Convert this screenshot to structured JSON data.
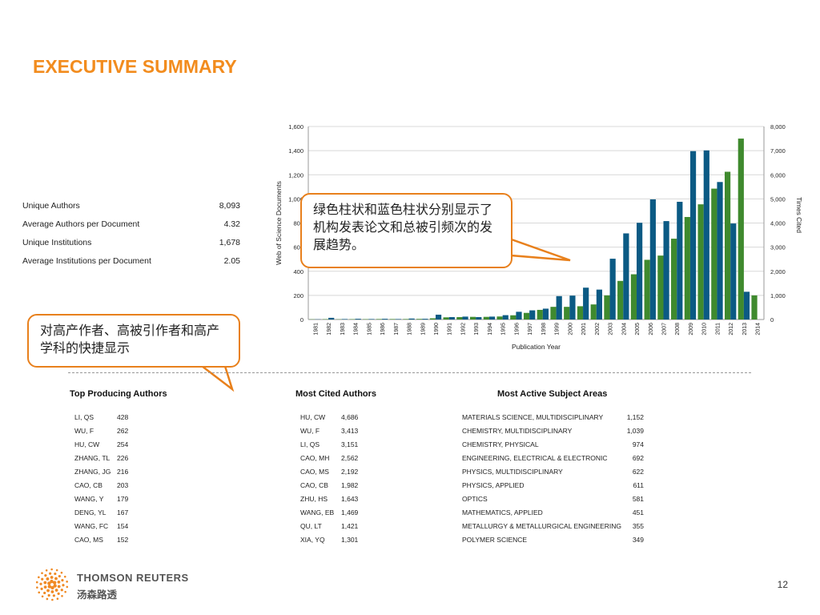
{
  "slide": {
    "title": "EXECUTIVE SUMMARY",
    "page_number": "12",
    "brand": "THOMSON REUTERS",
    "brand_cn": "汤森路透"
  },
  "stats": [
    {
      "label": "Unique Authors",
      "value": "8,093"
    },
    {
      "label": "Average Authors per Document",
      "value": "4.32"
    },
    {
      "label": "Unique Institutions",
      "value": "1,678"
    },
    {
      "label": "Average Institutions per Document",
      "value": "2.05"
    }
  ],
  "callouts": {
    "chart_note": "绿色柱状和蓝色柱状分别显示了机构发表论文和总被引频次的发展趋势。",
    "tables_note": "对高产作者、高被引作者和高产学科的快捷显示"
  },
  "chart_data": {
    "type": "bar",
    "categories": [
      "1981",
      "1982",
      "1983",
      "1984",
      "1985",
      "1986",
      "1987",
      "1988",
      "1989",
      "1990",
      "1991",
      "1992",
      "1993",
      "1994",
      "1995",
      "1996",
      "1997",
      "1998",
      "1999",
      "2000",
      "2001",
      "2002",
      "2003",
      "2004",
      "2005",
      "2006",
      "2007",
      "2008",
      "2009",
      "2010",
      "2011",
      "2012",
      "2013",
      "2014"
    ],
    "xlabel": "Publication Year",
    "ylabel": "Web of Science Documents",
    "y2label": "Times Cited",
    "ylim": [
      0,
      1600
    ],
    "y2lim": [
      0,
      8000
    ],
    "yticks": [
      "0",
      "200",
      "400",
      "600",
      "800",
      "1,000",
      "1,200",
      "1,400",
      "1,600"
    ],
    "y2ticks": [
      "0",
      "1,000",
      "2,000",
      "3,000",
      "4,000",
      "5,000",
      "6,000",
      "7,000",
      "8,000"
    ],
    "grid": true,
    "series": [
      {
        "axis": "left",
        "color": "#3f8a2e",
        "values": [
          2,
          3,
          2,
          3,
          3,
          4,
          4,
          4,
          5,
          10,
          18,
          20,
          22,
          22,
          25,
          35,
          55,
          80,
          105,
          105,
          110,
          125,
          200,
          320,
          375,
          495,
          530,
          670,
          850,
          955,
          1085,
          1225,
          1500,
          200
        ]
      },
      {
        "axis": "right",
        "color": "#0b5a84",
        "values": [
          10,
          70,
          20,
          30,
          20,
          30,
          20,
          40,
          30,
          200,
          100,
          120,
          100,
          120,
          180,
          320,
          380,
          450,
          970,
          990,
          1320,
          1240,
          2520,
          3570,
          4010,
          4980,
          4080,
          4880,
          6980,
          7010,
          5700,
          3980,
          1150,
          0
        ]
      }
    ]
  },
  "tables": {
    "authors": {
      "title": "Top Producing Authors",
      "rows": [
        [
          "LI, QS",
          "428"
        ],
        [
          "WU, F",
          "262"
        ],
        [
          "HU, CW",
          "254"
        ],
        [
          "ZHANG, TL",
          "226"
        ],
        [
          "ZHANG, JG",
          "216"
        ],
        [
          "CAO, CB",
          "203"
        ],
        [
          "WANG, Y",
          "179"
        ],
        [
          "DENG, YL",
          "167"
        ],
        [
          "WANG, FC",
          "154"
        ],
        [
          "CAO, MS",
          "152"
        ]
      ]
    },
    "cited": {
      "title": "Most Cited Authors",
      "rows": [
        [
          "HU, CW",
          "4,686"
        ],
        [
          "WU, F",
          "3,413"
        ],
        [
          "LI, QS",
          "3,151"
        ],
        [
          "CAO, MH",
          "2,562"
        ],
        [
          "CAO, MS",
          "2,192"
        ],
        [
          "CAO, CB",
          "1,982"
        ],
        [
          "ZHU, HS",
          "1,643"
        ],
        [
          "WANG, EB",
          "1,469"
        ],
        [
          "QU, LT",
          "1,421"
        ],
        [
          "XIA, YQ",
          "1,301"
        ]
      ]
    },
    "subjects": {
      "title": "Most Active Subject Areas",
      "rows": [
        [
          "MATERIALS SCIENCE, MULTIDISCIPLINARY",
          "1,152"
        ],
        [
          "CHEMISTRY, MULTIDISCIPLINARY",
          "1,039"
        ],
        [
          "CHEMISTRY, PHYSICAL",
          "974"
        ],
        [
          "ENGINEERING, ELECTRICAL & ELECTRONIC",
          "692"
        ],
        [
          "PHYSICS, MULTIDISCIPLINARY",
          "622"
        ],
        [
          "PHYSICS, APPLIED",
          "611"
        ],
        [
          "OPTICS",
          "581"
        ],
        [
          "MATHEMATICS, APPLIED",
          "451"
        ],
        [
          "METALLURGY & METALLURGICAL ENGINEERING",
          "355"
        ],
        [
          "POLYMER SCIENCE",
          "349"
        ]
      ]
    }
  }
}
